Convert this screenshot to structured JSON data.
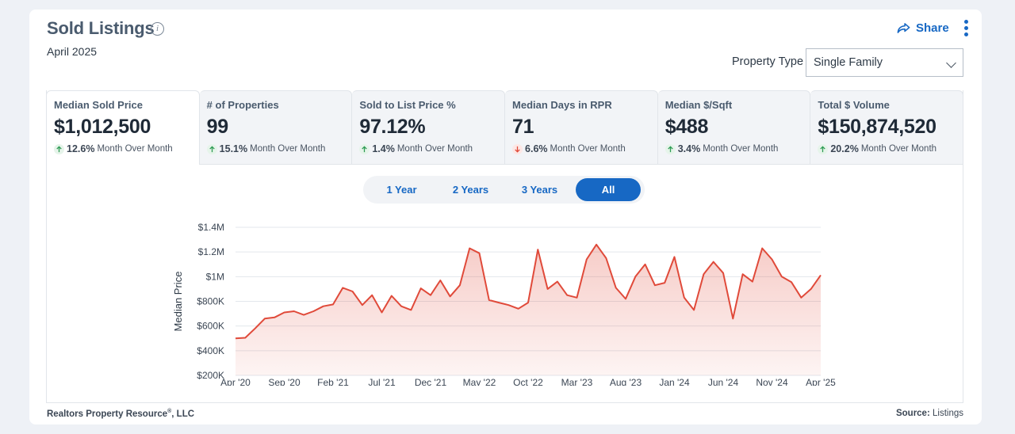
{
  "header": {
    "title": "Sold Listings",
    "subtitle": "April 2025",
    "share_label": "Share"
  },
  "filter": {
    "label": "Property Type",
    "value": "Single Family"
  },
  "tiles": [
    {
      "label": "Median Sold Price",
      "value": "$1,012,500",
      "change": "12.6%",
      "direction": "up",
      "period": "Month Over Month"
    },
    {
      "label": "# of Properties",
      "value": "99",
      "change": "15.1%",
      "direction": "up",
      "period": "Month Over Month"
    },
    {
      "label": "Sold to List Price %",
      "value": "97.12%",
      "change": "1.4%",
      "direction": "up",
      "period": "Month Over Month"
    },
    {
      "label": "Median Days in RPR",
      "value": "71",
      "change": "6.6%",
      "direction": "down",
      "period": "Month Over Month"
    },
    {
      "label": "Median $/Sqft",
      "value": "$488",
      "change": "3.4%",
      "direction": "up",
      "period": "Month Over Month"
    },
    {
      "label": "Total $ Volume",
      "value": "$150,874,520",
      "change": "20.2%",
      "direction": "up",
      "period": "Month Over Month"
    }
  ],
  "ranges": [
    "1 Year",
    "2 Years",
    "3 Years",
    "All"
  ],
  "active_range": "All",
  "colors": {
    "accent": "#1768c4",
    "line": "#e04a3a",
    "up": "#2e9b54",
    "down": "#e04a3a"
  },
  "chart_data": {
    "type": "area",
    "ylabel": "Median Price",
    "yticks": [
      "$200K",
      "$400K",
      "$600K",
      "$800K",
      "$1M",
      "$1.2M",
      "$1.4M"
    ],
    "ylim": [
      200000,
      1400000
    ],
    "xticks": [
      "Apr '20",
      "Sep '20",
      "Feb '21",
      "Jul '21",
      "Dec '21",
      "May '22",
      "Oct '22",
      "Mar '23",
      "Aug '23",
      "Jan '24",
      "Jun '24",
      "Nov '24",
      "Apr '25"
    ],
    "x": [
      "2020-04",
      "2020-05",
      "2020-06",
      "2020-07",
      "2020-08",
      "2020-09",
      "2020-10",
      "2020-11",
      "2020-12",
      "2021-01",
      "2021-02",
      "2021-03",
      "2021-04",
      "2021-05",
      "2021-06",
      "2021-07",
      "2021-08",
      "2021-09",
      "2021-10",
      "2021-11",
      "2021-12",
      "2022-01",
      "2022-02",
      "2022-03",
      "2022-04",
      "2022-05",
      "2022-06",
      "2022-07",
      "2022-08",
      "2022-09",
      "2022-10",
      "2022-11",
      "2022-12",
      "2023-01",
      "2023-02",
      "2023-03",
      "2023-04",
      "2023-05",
      "2023-06",
      "2023-07",
      "2023-08",
      "2023-09",
      "2023-10",
      "2023-11",
      "2023-12",
      "2024-01",
      "2024-02",
      "2024-03",
      "2024-04",
      "2024-05",
      "2024-06",
      "2024-07",
      "2024-08",
      "2024-09",
      "2024-10",
      "2024-11",
      "2024-12",
      "2025-01",
      "2025-02",
      "2025-03",
      "2025-04"
    ],
    "series": [
      {
        "values": [
          500000,
          505000,
          580000,
          660000,
          670000,
          710000,
          720000,
          690000,
          720000,
          760000,
          775000,
          910000,
          880000,
          770000,
          850000,
          710000,
          845000,
          760000,
          730000,
          905000,
          850000,
          970000,
          840000,
          930000,
          1230000,
          1190000,
          810000,
          790000,
          770000,
          740000,
          790000,
          1220000,
          900000,
          960000,
          850000,
          830000,
          1140000,
          1260000,
          1150000,
          910000,
          820000,
          1000000,
          1100000,
          930000,
          950000,
          1160000,
          830000,
          730000,
          1020000,
          1120000,
          1030000,
          660000,
          1020000,
          960000,
          1230000,
          1140000,
          1000000,
          955000,
          830000,
          900000,
          1012500
        ]
      }
    ],
    "grid": true,
    "legend": "none"
  },
  "footer": {
    "attribution": "Realtors Property Resource",
    "reg": "®",
    "suffix": ", LLC",
    "source_label": "Source:",
    "source_value": "Listings"
  }
}
